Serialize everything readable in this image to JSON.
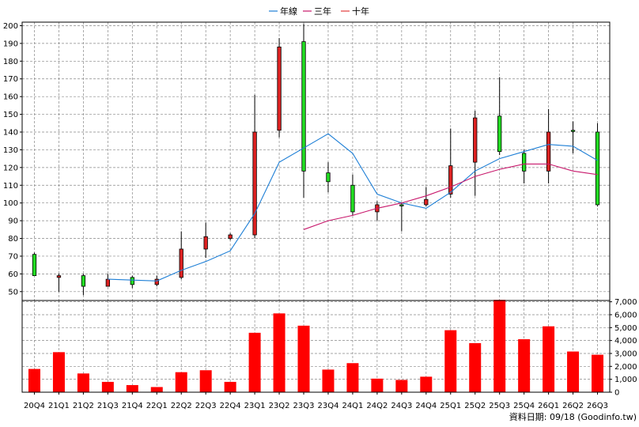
{
  "legend": {
    "items": [
      {
        "label": "年線",
        "color": "#1e7fd6"
      },
      {
        "label": "三年",
        "color": "#c8186c"
      },
      {
        "label": "十年",
        "color": "#e23c3c"
      }
    ]
  },
  "footer": "資料日期: 09/18  (Goodinfo.tw)",
  "colors": {
    "up": "#dd2222",
    "down": "#22dd22",
    "volume": "#ff0000",
    "grid": "#888888"
  },
  "chart_data": [
    {
      "type": "candlestick",
      "title": "",
      "ylim": [
        45,
        202
      ],
      "yticks": [
        50,
        60,
        70,
        80,
        90,
        100,
        110,
        120,
        130,
        140,
        150,
        160,
        170,
        180,
        190,
        200
      ],
      "grid": true,
      "legend_position": "top-center",
      "categories": [
        "20Q4",
        "21Q1",
        "21Q2",
        "21Q3",
        "21Q4",
        "22Q1",
        "22Q2",
        "22Q3",
        "22Q4",
        "23Q1",
        "23Q2",
        "23Q3",
        "23Q4",
        "24Q1",
        "24Q2",
        "24Q3",
        "24Q4",
        "25Q1",
        "25Q2",
        "25Q3",
        "25Q4",
        "26Q1",
        "26Q2",
        "26Q3"
      ],
      "ohlc": [
        {
          "o": 59,
          "h": 72,
          "l": 59,
          "c": 71
        },
        {
          "o": 59,
          "h": 60,
          "l": 50,
          "c": 58
        },
        {
          "o": 53,
          "h": 60,
          "l": 48,
          "c": 59
        },
        {
          "o": 57,
          "h": 60,
          "l": 53,
          "c": 53
        },
        {
          "o": 54,
          "h": 59,
          "l": 52,
          "c": 58
        },
        {
          "o": 57,
          "h": 59,
          "l": 53,
          "c": 54
        },
        {
          "o": 74,
          "h": 84,
          "l": 57,
          "c": 58
        },
        {
          "o": 81,
          "h": 89,
          "l": 69,
          "c": 74
        },
        {
          "o": 82,
          "h": 83,
          "l": 79,
          "c": 80
        },
        {
          "o": 140,
          "h": 161,
          "l": 80,
          "c": 82
        },
        {
          "o": 188,
          "h": 193,
          "l": 137,
          "c": 141
        },
        {
          "o": 118,
          "h": 201,
          "l": 103,
          "c": 191
        },
        {
          "o": 112,
          "h": 123,
          "l": 106,
          "c": 117
        },
        {
          "o": 95,
          "h": 116,
          "l": 93,
          "c": 110
        },
        {
          "o": 99,
          "h": 101,
          "l": 90,
          "c": 95
        },
        {
          "o": 99,
          "h": 100,
          "l": 84,
          "c": 99
        },
        {
          "o": 102,
          "h": 109,
          "l": 98,
          "c": 99
        },
        {
          "o": 121,
          "h": 142,
          "l": 103,
          "c": 105
        },
        {
          "o": 148,
          "h": 152,
          "l": 104,
          "c": 123
        },
        {
          "o": 129,
          "h": 171,
          "l": 127,
          "c": 149
        },
        {
          "o": 118,
          "h": 130,
          "l": 111,
          "c": 128
        },
        {
          "o": 140,
          "h": 153,
          "l": 111,
          "c": 118
        },
        {
          "o": 141,
          "h": 146,
          "l": 128,
          "c": 141
        },
        {
          "o": 99,
          "h": 145,
          "l": 98,
          "c": 140
        }
      ],
      "series": [
        {
          "name": "年線",
          "values": [
            null,
            null,
            null,
            57,
            56.5,
            56,
            62,
            67,
            73,
            94,
            123,
            131,
            139,
            128,
            105,
            100,
            97,
            106,
            118,
            125,
            129,
            133,
            132,
            124
          ]
        },
        {
          "name": "三年",
          "values": [
            null,
            null,
            null,
            null,
            null,
            null,
            null,
            null,
            null,
            null,
            null,
            85,
            90,
            93,
            97,
            100,
            104,
            109,
            115,
            119,
            122,
            122,
            118,
            116
          ]
        },
        {
          "name": "十年",
          "values": [
            null,
            null,
            null,
            null,
            null,
            null,
            null,
            null,
            null,
            null,
            null,
            null,
            null,
            null,
            null,
            null,
            null,
            null,
            null,
            null,
            null,
            null,
            null,
            null
          ]
        }
      ]
    },
    {
      "type": "bar",
      "title": "",
      "ylim": [
        0,
        7000
      ],
      "yticks": [
        0,
        1000,
        2000,
        3000,
        4000,
        5000,
        6000,
        7000
      ],
      "ytick_labels": [
        "0",
        "1,000",
        "2,000",
        "3,000",
        "4,000",
        "5,000",
        "6,000",
        "7,000"
      ],
      "categories": [
        "20Q4",
        "21Q1",
        "21Q2",
        "21Q3",
        "21Q4",
        "22Q1",
        "22Q2",
        "22Q3",
        "22Q4",
        "23Q1",
        "23Q2",
        "23Q3",
        "23Q4",
        "24Q1",
        "24Q2",
        "24Q3",
        "24Q4",
        "25Q1",
        "25Q2",
        "25Q3",
        "25Q4",
        "26Q1",
        "26Q2",
        "26Q3"
      ],
      "values": [
        1800,
        3100,
        1450,
        800,
        550,
        400,
        1550,
        1700,
        800,
        4600,
        6100,
        5150,
        1750,
        2250,
        1050,
        950,
        1200,
        4800,
        3800,
        7150,
        4100,
        5100,
        3150,
        2900
      ]
    }
  ]
}
